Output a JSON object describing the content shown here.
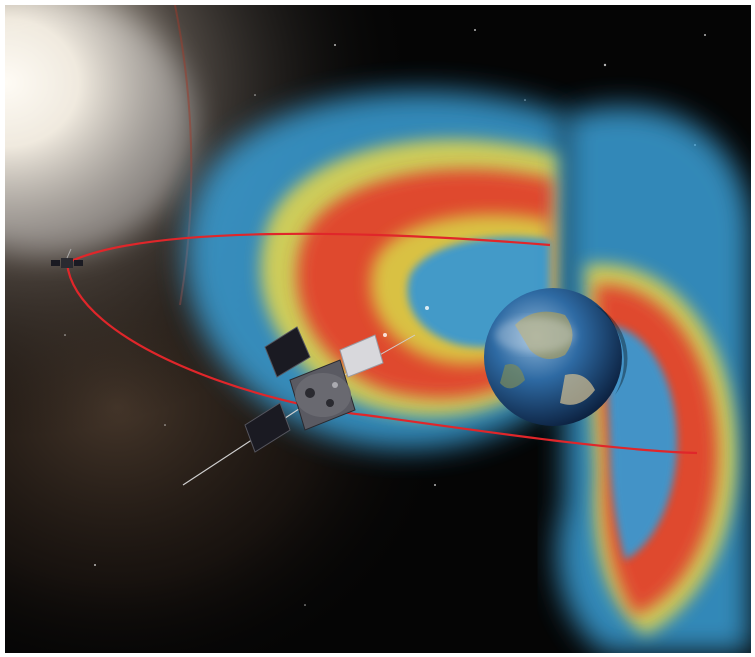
{
  "image": {
    "subject": "artist-illustration-radiation-belts",
    "colors": {
      "space": "#050505",
      "sun_glow": "#fff6e6",
      "belt_outer": "#3aa0d8",
      "belt_mid_yellow": "#e8d84a",
      "belt_core_red": "#e23a2a",
      "orbit_line": "#e0262a",
      "earth_ocean": "#1e4f8a",
      "earth_land": "#7a8a5a",
      "spacecraft_body": "#6a6a72",
      "solar_panel": "#1a1a22"
    },
    "objects": [
      {
        "name": "sun-glow"
      },
      {
        "name": "milky-way-haze"
      },
      {
        "name": "radiation-belts"
      },
      {
        "name": "spacecraft-orbit"
      },
      {
        "name": "earth"
      },
      {
        "name": "spacecraft-main"
      },
      {
        "name": "spacecraft-distant"
      }
    ]
  }
}
